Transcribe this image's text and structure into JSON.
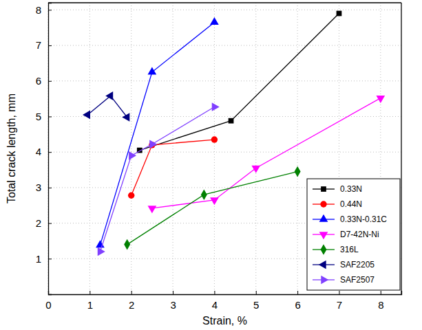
{
  "chart_data": {
    "type": "line",
    "x_label": "Strain, %",
    "y_label": "Total crack length, mm",
    "xlim": [
      0,
      8.5
    ],
    "ylim": [
      0,
      8.2
    ],
    "xticks": [
      0,
      1,
      2,
      3,
      4,
      5,
      6,
      7,
      8
    ],
    "yticks": [
      1,
      2,
      3,
      4,
      5,
      6,
      7,
      8
    ],
    "grid": true,
    "legend": "lower right",
    "series": [
      {
        "name": "0.33N",
        "color": "#000000",
        "marker": "square",
        "x": [
          2.2,
          4.4,
          7.0
        ],
        "values": [
          4.05,
          4.88,
          7.9
        ]
      },
      {
        "name": "0.44N",
        "color": "#ff0000",
        "marker": "circle",
        "x": [
          2.0,
          2.5,
          4.0
        ],
        "values": [
          2.78,
          4.2,
          4.35
        ]
      },
      {
        "name": "0.33N-0.31C",
        "color": "#0000ff",
        "marker": "triangle-up",
        "x": [
          1.25,
          2.5,
          4.0
        ],
        "values": [
          1.38,
          6.25,
          7.65
        ]
      },
      {
        "name": "D7-42N-Ni",
        "color": "#ff00ff",
        "marker": "triangle-down",
        "x": [
          2.5,
          4.0,
          5.0,
          8.0
        ],
        "values": [
          2.42,
          2.65,
          3.55,
          5.52
        ]
      },
      {
        "name": "316L",
        "color": "#008000",
        "marker": "diamond",
        "x": [
          1.9,
          3.75,
          6.0
        ],
        "values": [
          1.4,
          2.8,
          3.45
        ]
      },
      {
        "name": "SAF2205",
        "color": "#000080",
        "marker": "triangle-left",
        "x": [
          0.95,
          1.5,
          1.9
        ],
        "values": [
          5.05,
          5.58,
          4.98
        ]
      },
      {
        "name": "SAF2507",
        "color": "#8040ff",
        "marker": "triangle-right",
        "x": [
          1.25,
          2.0,
          2.5,
          4.0
        ],
        "values": [
          1.2,
          3.9,
          4.22,
          5.27
        ]
      }
    ]
  }
}
